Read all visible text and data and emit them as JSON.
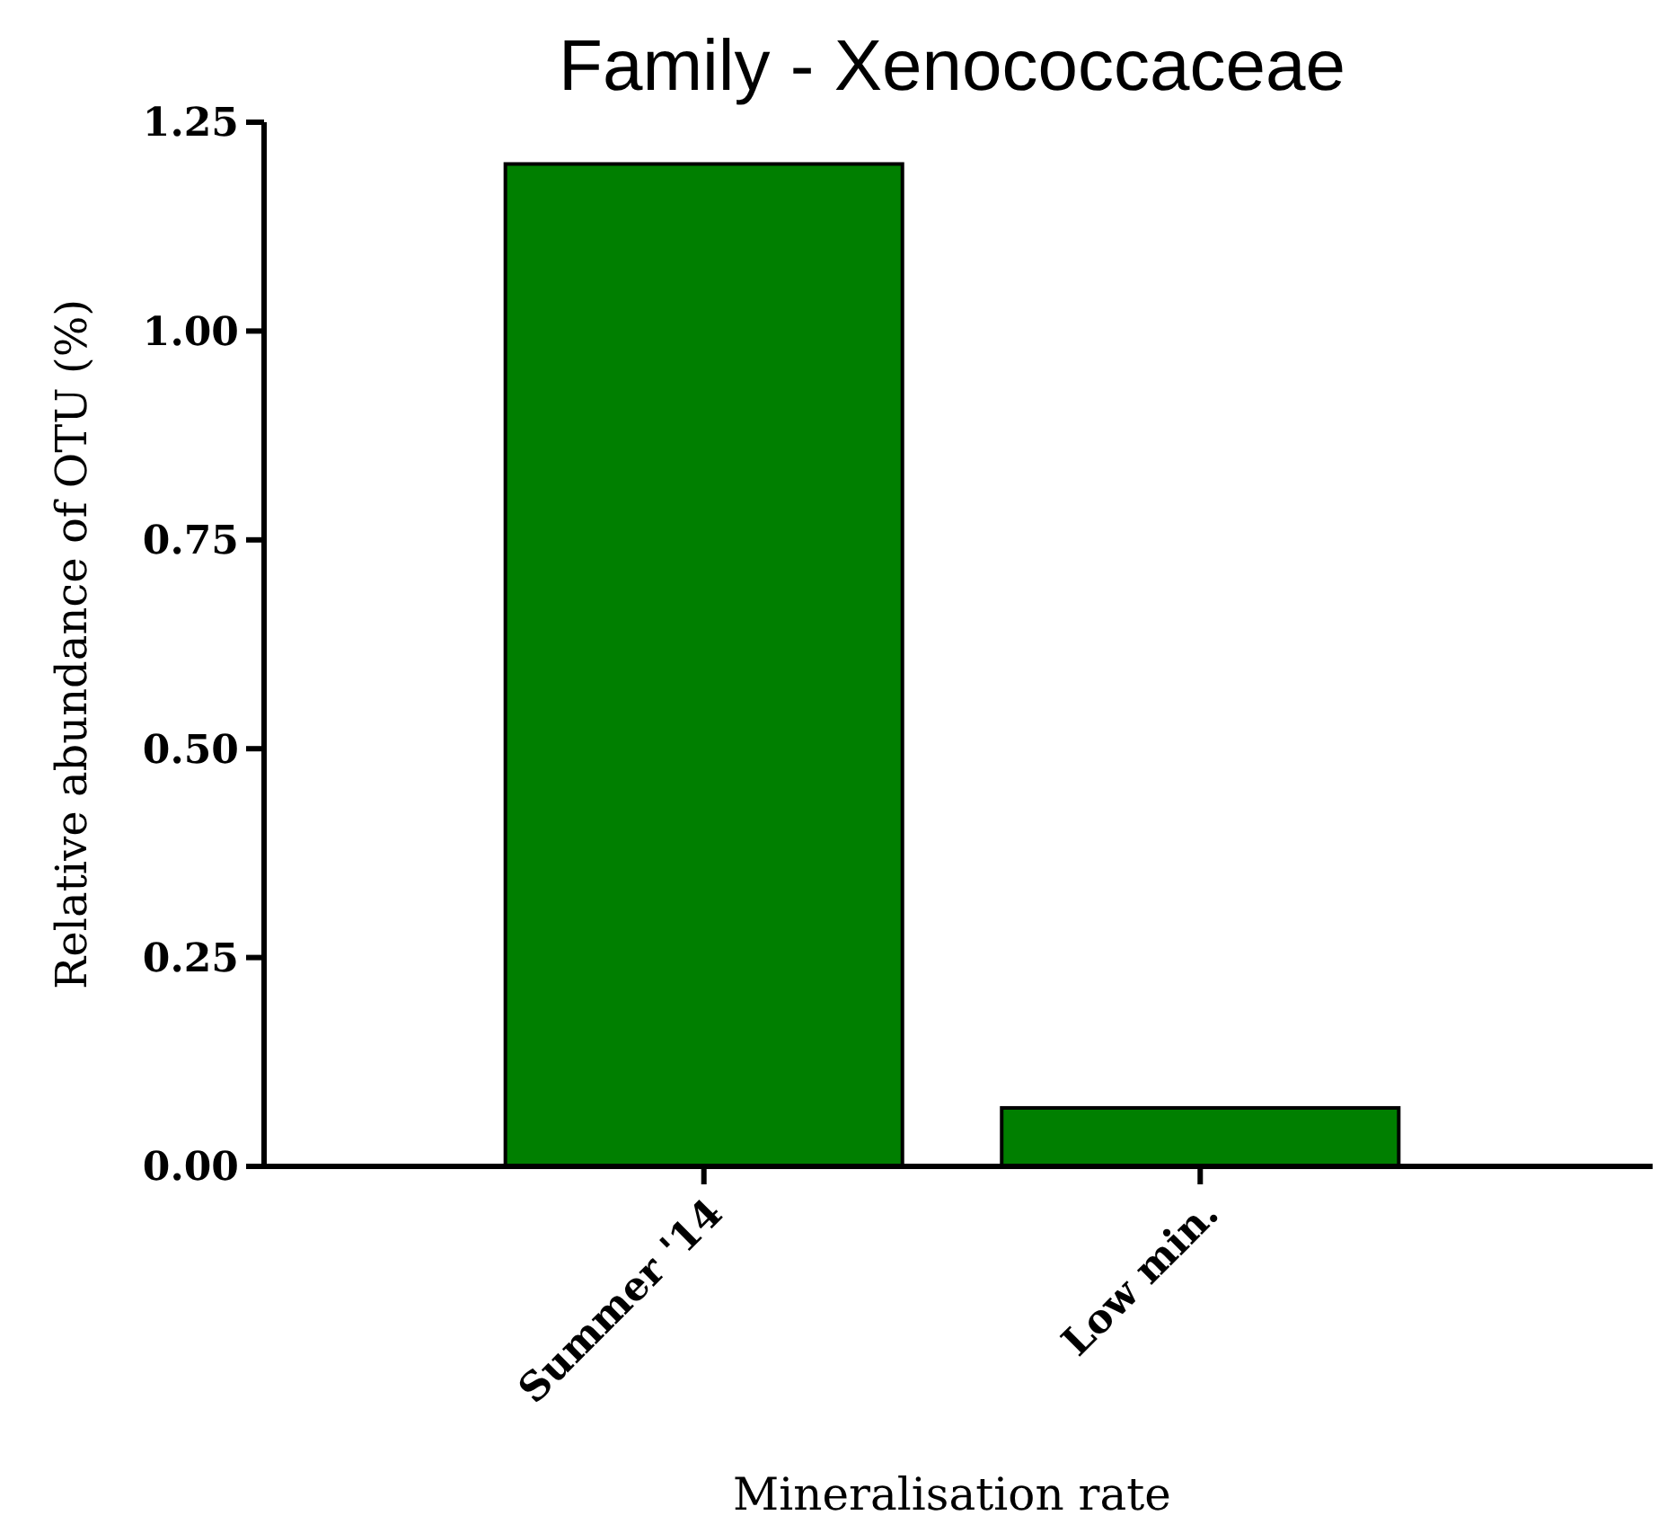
{
  "chart_data": {
    "type": "bar",
    "title": "Family - Xenococcaceae",
    "xlabel": "Mineralisation rate",
    "ylabel": "Relative abundance of OTU (%)",
    "categories": [
      "Summer '14",
      "Low min."
    ],
    "values": [
      1.2,
      0.07
    ],
    "color": "#007f00",
    "ylim": [
      0,
      1.25
    ],
    "yticks": [
      {
        "value": 0,
        "label": "0.00"
      },
      {
        "value": 0.25,
        "label": "0.25"
      },
      {
        "value": 0.5,
        "label": "0.50"
      },
      {
        "value": 0.75,
        "label": "0.75"
      },
      {
        "value": 1,
        "label": "1.00"
      },
      {
        "value": 1.25,
        "label": "1.25"
      }
    ],
    "grid": false
  }
}
